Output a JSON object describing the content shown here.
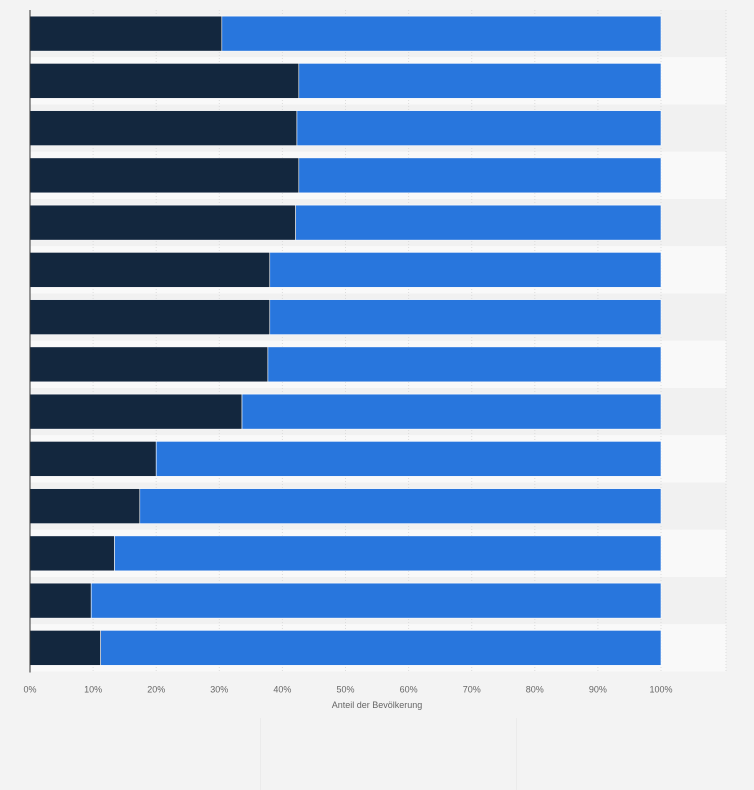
{
  "chart_data": {
    "type": "bar",
    "orientation": "horizontal",
    "stacked": true,
    "xlabel": "Anteil der Bevölkerung",
    "x_ticks": [
      "0%",
      "10%",
      "20%",
      "30%",
      "40%",
      "50%",
      "60%",
      "70%",
      "80%",
      "90%",
      "100%"
    ],
    "xlim": [
      0,
      100
    ],
    "grid": true,
    "colors": {
      "dark": "#13273e",
      "blue": "#2876dd",
      "row_alt": "#f1f1f1",
      "row_base": "#f9f9f9",
      "grid": "#dcdcdc"
    },
    "series": [
      {
        "color": "#13273e",
        "values": [
          30.4,
          42.6,
          42.3,
          42.6,
          42.1,
          38.0,
          38.0,
          37.7,
          33.6,
          20.0,
          17.4,
          13.4,
          9.7,
          11.2
        ]
      },
      {
        "color": "#2876dd",
        "values": [
          69.6,
          57.4,
          57.7,
          57.4,
          57.9,
          62.0,
          62.0,
          62.3,
          66.4,
          80.0,
          82.6,
          86.6,
          90.3,
          88.8
        ]
      }
    ]
  }
}
